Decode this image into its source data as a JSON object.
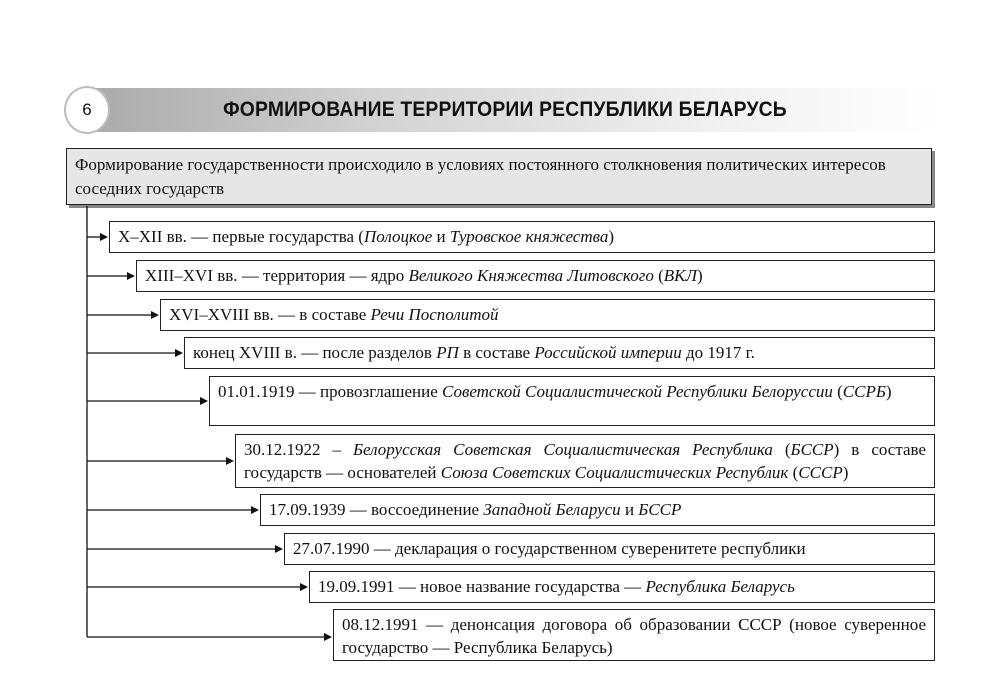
{
  "header": {
    "page_number": "6",
    "title": "ФОРМИРОВАНИЕ ТЕРРИТОРИИ РЕСПУБЛИКИ БЕЛАРУСЬ"
  },
  "intro": "Формирование государственности происходило в условиях постоянного столкновения политических интересов соседних государств",
  "items": [
    [
      {
        "t": "X–XII вв. — первые государства ("
      },
      {
        "t": "Полоцкое",
        "i": true
      },
      {
        "t": " и "
      },
      {
        "t": "Туровское княжества",
        "i": true
      },
      {
        "t": ")"
      }
    ],
    [
      {
        "t": "XIII–XVI вв. — территория — ядро "
      },
      {
        "t": "Великого Княжества Литовского",
        "i": true
      },
      {
        "t": " ("
      },
      {
        "t": "ВКЛ",
        "i": true
      },
      {
        "t": ")"
      }
    ],
    [
      {
        "t": "XVI–XVIII вв. — в составе "
      },
      {
        "t": "Речи Посполитой",
        "i": true
      }
    ],
    [
      {
        "t": "конец XVIII в. — после разделов "
      },
      {
        "t": "РП",
        "i": true
      },
      {
        "t": " в составе "
      },
      {
        "t": "Российской империи",
        "i": true
      },
      {
        "t": " до 1917 г."
      }
    ],
    [
      {
        "t": "01.01.1919 — провозглашение "
      },
      {
        "t": "Советской Социалистической Республики Белоруссии",
        "i": true
      },
      {
        "t": " ("
      },
      {
        "t": "ССРБ",
        "i": true
      },
      {
        "t": ")"
      }
    ],
    [
      {
        "t": "30.12.1922 – "
      },
      {
        "t": "Белорусская Советская Социалистическая Республика",
        "i": true
      },
      {
        "t": " ("
      },
      {
        "t": "БССР",
        "i": true
      },
      {
        "t": ") в составе государств — основателей "
      },
      {
        "t": "Союза Советских Социалистических Республик",
        "i": true
      },
      {
        "t": " ("
      },
      {
        "t": "СССР",
        "i": true
      },
      {
        "t": ")"
      }
    ],
    [
      {
        "t": "17.09.1939 — воссоединение "
      },
      {
        "t": "Западной Беларуси",
        "i": true
      },
      {
        "t": " и "
      },
      {
        "t": "БССР",
        "i": true
      }
    ],
    [
      {
        "t": "27.07.1990 — декларация о государственном суверенитете республики"
      }
    ],
    [
      {
        "t": "19.09.1991 — новое название государства — "
      },
      {
        "t": "Республика Беларусь",
        "i": true
      }
    ],
    [
      {
        "t": "08.12.1991 — денонсация договора об образовании СССР (новое суверенное государство — Республика Беларусь)"
      }
    ]
  ]
}
